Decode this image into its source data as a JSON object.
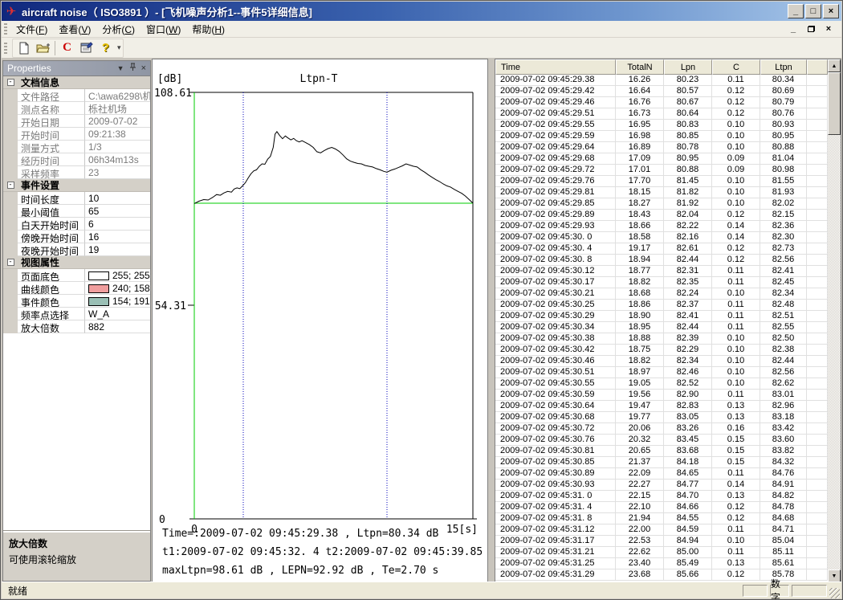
{
  "window": {
    "title": "aircraft noise（ ISO3891 ）- [飞机噪声分析1--事件5详细信息]",
    "buttons": {
      "minimize": "_",
      "maximize": "□",
      "close": "×"
    }
  },
  "menu": {
    "items": [
      "文件(F)",
      "查看(V)",
      "分析(C)",
      "窗口(W)",
      "帮助(H)"
    ]
  },
  "toolbar": {
    "c_label": "C",
    "help_label": "?"
  },
  "properties_panel": {
    "title": "Properties",
    "sections": [
      {
        "title": "文档信息",
        "readonly": true,
        "rows": [
          [
            "文件路径",
            "C:\\awa6298\\机场"
          ],
          [
            "测点名称",
            "栎社机场"
          ],
          [
            "开始日期",
            "2009-07-02"
          ],
          [
            "开始时间",
            "09:21:38"
          ],
          [
            "测量方式",
            "1/3"
          ],
          [
            "经历时间",
            "06h34m13s"
          ],
          [
            "采样频率",
            "23"
          ]
        ]
      },
      {
        "title": "事件设置",
        "readonly": false,
        "rows": [
          [
            "时间长度",
            "10"
          ],
          [
            "最小阈值",
            "65"
          ],
          [
            "白天开始时间",
            "6"
          ],
          [
            "傍晚开始时间",
            "16"
          ],
          [
            "夜晚开始时间",
            "19"
          ]
        ]
      },
      {
        "title": "视图属性",
        "readonly": false,
        "rows": [
          [
            "页面底色",
            "255; 255; 25",
            "#ffffff"
          ],
          [
            "曲线颜色",
            "240; 158; 15",
            "#f09e9e"
          ],
          [
            "事件颜色",
            "154; 191; 18",
            "#9abfb5"
          ],
          [
            "频率点选择",
            "W_A"
          ],
          [
            "放大倍数",
            "882"
          ]
        ]
      }
    ],
    "hint_title": "放大倍数",
    "hint_text": "可使用滚轮缩放"
  },
  "chart_data": {
    "type": "line",
    "title": "Ltpn-T",
    "y_unit": "[dB]",
    "xlim": [
      0,
      15
    ],
    "ylim": [
      0,
      108.61
    ],
    "y_ticks": [
      "108.61",
      "54.31",
      "0"
    ],
    "x_tick_left": "0",
    "x_tick_right": "15[s]",
    "threshold_db": 80.34,
    "event_lines_s": [
      2.64,
      10.37
    ],
    "colors": {
      "axis_marker_green": "#00cc00",
      "event_marker_blue": "#0000bb",
      "curve": "#000000"
    },
    "x": [
      0,
      0.25,
      0.5,
      0.75,
      1.0,
      1.2,
      1.4,
      1.6,
      1.8,
      2.0,
      2.15,
      2.3,
      2.45,
      2.6,
      2.75,
      2.9,
      3.05,
      3.2,
      3.35,
      3.5,
      3.65,
      3.8,
      3.95,
      4.1,
      4.25,
      4.35,
      4.45,
      4.6,
      4.75,
      4.9,
      5.05,
      5.2,
      5.35,
      5.5,
      5.65,
      5.8,
      6.0,
      6.2,
      6.4,
      6.6,
      6.8,
      7.0,
      7.2,
      7.4,
      7.6,
      7.8,
      8.0,
      8.2,
      8.4,
      8.6,
      8.8,
      9.0,
      9.2,
      9.4,
      9.6,
      9.8,
      10.0,
      10.2,
      10.37,
      10.6,
      10.8,
      11.0,
      11.2,
      11.4,
      11.6,
      11.8,
      12.0,
      12.2,
      12.4,
      12.6,
      12.8,
      13.0,
      13.2,
      13.4,
      13.6,
      13.8,
      14.0,
      14.2,
      14.4,
      14.6,
      14.8,
      15.0
    ],
    "series": [
      {
        "name": "Ltpn",
        "values": [
          80.3,
          80.9,
          81.3,
          81.2,
          81.9,
          82.6,
          82.4,
          83.0,
          83.4,
          83.2,
          84.0,
          84.3,
          84.1,
          84.8,
          85.6,
          86.8,
          87.9,
          88.6,
          88.9,
          89.8,
          90.4,
          90.3,
          91.6,
          92.3,
          94.6,
          98.0,
          98.61,
          97.6,
          96.8,
          97.5,
          97.0,
          96.5,
          96.9,
          96.3,
          96.0,
          96.3,
          95.8,
          95.3,
          94.6,
          93.5,
          93.2,
          93.8,
          94.3,
          94.6,
          94.2,
          93.6,
          92.7,
          91.7,
          91.1,
          90.8,
          90.5,
          90.4,
          90.0,
          89.8,
          89.6,
          89.2,
          88.9,
          88.5,
          88.3,
          88.8,
          89.1,
          89.5,
          89.9,
          90.4,
          90.1,
          89.8,
          89.6,
          88.9,
          88.3,
          87.6,
          87.0,
          86.4,
          85.9,
          85.3,
          84.8,
          84.5,
          83.9,
          83.4,
          82.9,
          82.2,
          81.3,
          80.4
        ]
      }
    ],
    "footer_lines": [
      "Time=:2009-07-02 09:45:29.38 , Ltpn=80.34 dB",
      "t1:2009-07-02 09:45:32. 4 t2:2009-07-02 09:45:39.85",
      "maxLtpn=98.61 dB , LEPN=92.92 dB , Te=2.70 s"
    ]
  },
  "table": {
    "columns": [
      "Time",
      "TotalN",
      "Lpn",
      "C",
      "Ltpn"
    ],
    "rows": [
      [
        "2009-07-02 09:45:29.38",
        "16.26",
        "80.23",
        "0.11",
        "80.34"
      ],
      [
        "2009-07-02 09:45:29.42",
        "16.64",
        "80.57",
        "0.12",
        "80.69"
      ],
      [
        "2009-07-02 09:45:29.46",
        "16.76",
        "80.67",
        "0.12",
        "80.79"
      ],
      [
        "2009-07-02 09:45:29.51",
        "16.73",
        "80.64",
        "0.12",
        "80.76"
      ],
      [
        "2009-07-02 09:45:29.55",
        "16.95",
        "80.83",
        "0.10",
        "80.93"
      ],
      [
        "2009-07-02 09:45:29.59",
        "16.98",
        "80.85",
        "0.10",
        "80.95"
      ],
      [
        "2009-07-02 09:45:29.64",
        "16.89",
        "80.78",
        "0.10",
        "80.88"
      ],
      [
        "2009-07-02 09:45:29.68",
        "17.09",
        "80.95",
        "0.09",
        "81.04"
      ],
      [
        "2009-07-02 09:45:29.72",
        "17.01",
        "80.88",
        "0.09",
        "80.98"
      ],
      [
        "2009-07-02 09:45:29.76",
        "17.70",
        "81.45",
        "0.10",
        "81.55"
      ],
      [
        "2009-07-02 09:45:29.81",
        "18.15",
        "81.82",
        "0.10",
        "81.93"
      ],
      [
        "2009-07-02 09:45:29.85",
        "18.27",
        "81.92",
        "0.10",
        "82.02"
      ],
      [
        "2009-07-02 09:45:29.89",
        "18.43",
        "82.04",
        "0.12",
        "82.15"
      ],
      [
        "2009-07-02 09:45:29.93",
        "18.66",
        "82.22",
        "0.14",
        "82.36"
      ],
      [
        "2009-07-02 09:45:30. 0",
        "18.58",
        "82.16",
        "0.14",
        "82.30"
      ],
      [
        "2009-07-02 09:45:30. 4",
        "19.17",
        "82.61",
        "0.12",
        "82.73"
      ],
      [
        "2009-07-02 09:45:30. 8",
        "18.94",
        "82.44",
        "0.12",
        "82.56"
      ],
      [
        "2009-07-02 09:45:30.12",
        "18.77",
        "82.31",
        "0.11",
        "82.41"
      ],
      [
        "2009-07-02 09:45:30.17",
        "18.82",
        "82.35",
        "0.11",
        "82.45"
      ],
      [
        "2009-07-02 09:45:30.21",
        "18.68",
        "82.24",
        "0.10",
        "82.34"
      ],
      [
        "2009-07-02 09:45:30.25",
        "18.86",
        "82.37",
        "0.11",
        "82.48"
      ],
      [
        "2009-07-02 09:45:30.29",
        "18.90",
        "82.41",
        "0.11",
        "82.51"
      ],
      [
        "2009-07-02 09:45:30.34",
        "18.95",
        "82.44",
        "0.11",
        "82.55"
      ],
      [
        "2009-07-02 09:45:30.38",
        "18.88",
        "82.39",
        "0.10",
        "82.50"
      ],
      [
        "2009-07-02 09:45:30.42",
        "18.75",
        "82.29",
        "0.10",
        "82.38"
      ],
      [
        "2009-07-02 09:45:30.46",
        "18.82",
        "82.34",
        "0.10",
        "82.44"
      ],
      [
        "2009-07-02 09:45:30.51",
        "18.97",
        "82.46",
        "0.10",
        "82.56"
      ],
      [
        "2009-07-02 09:45:30.55",
        "19.05",
        "82.52",
        "0.10",
        "82.62"
      ],
      [
        "2009-07-02 09:45:30.59",
        "19.56",
        "82.90",
        "0.11",
        "83.01"
      ],
      [
        "2009-07-02 09:45:30.64",
        "19.47",
        "82.83",
        "0.13",
        "82.96"
      ],
      [
        "2009-07-02 09:45:30.68",
        "19.77",
        "83.05",
        "0.13",
        "83.18"
      ],
      [
        "2009-07-02 09:45:30.72",
        "20.06",
        "83.26",
        "0.16",
        "83.42"
      ],
      [
        "2009-07-02 09:45:30.76",
        "20.32",
        "83.45",
        "0.15",
        "83.60"
      ],
      [
        "2009-07-02 09:45:30.81",
        "20.65",
        "83.68",
        "0.15",
        "83.82"
      ],
      [
        "2009-07-02 09:45:30.85",
        "21.37",
        "84.18",
        "0.15",
        "84.32"
      ],
      [
        "2009-07-02 09:45:30.89",
        "22.09",
        "84.65",
        "0.11",
        "84.76"
      ],
      [
        "2009-07-02 09:45:30.93",
        "22.27",
        "84.77",
        "0.14",
        "84.91"
      ],
      [
        "2009-07-02 09:45:31. 0",
        "22.15",
        "84.70",
        "0.13",
        "84.82"
      ],
      [
        "2009-07-02 09:45:31. 4",
        "22.10",
        "84.66",
        "0.12",
        "84.78"
      ],
      [
        "2009-07-02 09:45:31. 8",
        "21.94",
        "84.55",
        "0.12",
        "84.68"
      ],
      [
        "2009-07-02 09:45:31.12",
        "22.00",
        "84.59",
        "0.11",
        "84.71"
      ],
      [
        "2009-07-02 09:45:31.17",
        "22.53",
        "84.94",
        "0.10",
        "85.04"
      ],
      [
        "2009-07-02 09:45:31.21",
        "22.62",
        "85.00",
        "0.11",
        "85.11"
      ],
      [
        "2009-07-02 09:45:31.25",
        "23.40",
        "85.49",
        "0.13",
        "85.61"
      ],
      [
        "2009-07-02 09:45:31.29",
        "23.68",
        "85.66",
        "0.12",
        "85.78"
      ]
    ]
  },
  "statusbar": {
    "ready": "就绪",
    "pane_numeric": "数字"
  }
}
